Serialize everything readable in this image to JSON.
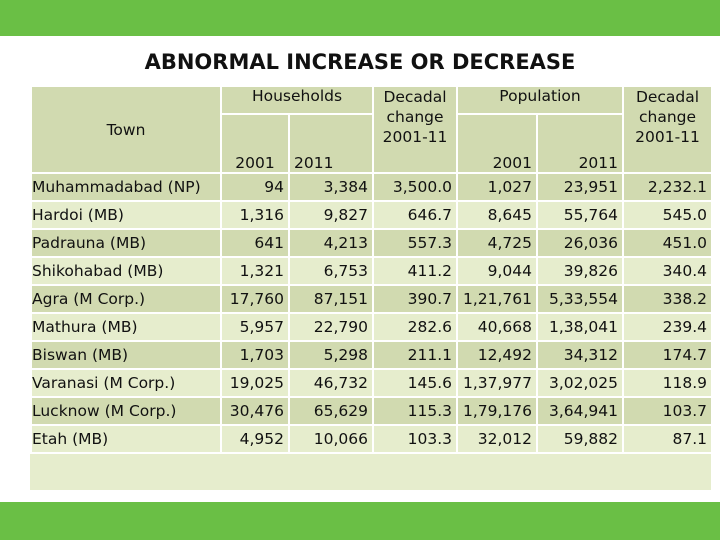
{
  "title": "ABNORMAL INCREASE OR DECREASE",
  "headers": {
    "town": "Town",
    "households": "Households",
    "decadal_line1": "Decadal",
    "decadal_line2": "change",
    "decadal_line3": "2001-11",
    "population": "Population",
    "y2001": "2001",
    "y2011": "2011"
  },
  "rows": [
    {
      "town": "Muhammadabad (NP)",
      "hh2001": "94",
      "hh2011": "3,384",
      "hh_change": "3,500.0",
      "pop2001": "1,027",
      "pop2011": "23,951",
      "pop_change": "2,232.1"
    },
    {
      "town": "Hardoi (MB)",
      "hh2001": "1,316",
      "hh2011": "9,827",
      "hh_change": "646.7",
      "pop2001": "8,645",
      "pop2011": "55,764",
      "pop_change": "545.0"
    },
    {
      "town": "Padrauna (MB)",
      "hh2001": "641",
      "hh2011": "4,213",
      "hh_change": "557.3",
      "pop2001": "4,725",
      "pop2011": "26,036",
      "pop_change": "451.0"
    },
    {
      "town": "Shikohabad (MB)",
      "hh2001": "1,321",
      "hh2011": "6,753",
      "hh_change": "411.2",
      "pop2001": "9,044",
      "pop2011": "39,826",
      "pop_change": "340.4"
    },
    {
      "town": "Agra (M Corp.)",
      "hh2001": "17,760",
      "hh2011": "87,151",
      "hh_change": "390.7",
      "pop2001": "1,21,761",
      "pop2011": "5,33,554",
      "pop_change": "338.2"
    },
    {
      "town": "Mathura (MB)",
      "hh2001": "5,957",
      "hh2011": "22,790",
      "hh_change": "282.6",
      "pop2001": "40,668",
      "pop2011": "1,38,041",
      "pop_change": "239.4"
    },
    {
      "town": "Biswan (MB)",
      "hh2001": "1,703",
      "hh2011": "5,298",
      "hh_change": "211.1",
      "pop2001": "12,492",
      "pop2011": "34,312",
      "pop_change": "174.7"
    },
    {
      "town": "Varanasi (M Corp.)",
      "hh2001": "19,025",
      "hh2011": "46,732",
      "hh_change": "145.6",
      "pop2001": "1,37,977",
      "pop2011": "3,02,025",
      "pop_change": "118.9"
    },
    {
      "town": "Lucknow (M Corp.)",
      "hh2001": "30,476",
      "hh2011": "65,629",
      "hh_change": "115.3",
      "pop2001": "1,79,176",
      "pop2011": "3,64,941",
      "pop_change": "103.7"
    },
    {
      "town": "Etah (MB)",
      "hh2001": "4,952",
      "hh2011": "10,066",
      "hh_change": "103.3",
      "pop2001": "32,012",
      "pop2011": "59,882",
      "pop_change": "87.1"
    }
  ]
}
